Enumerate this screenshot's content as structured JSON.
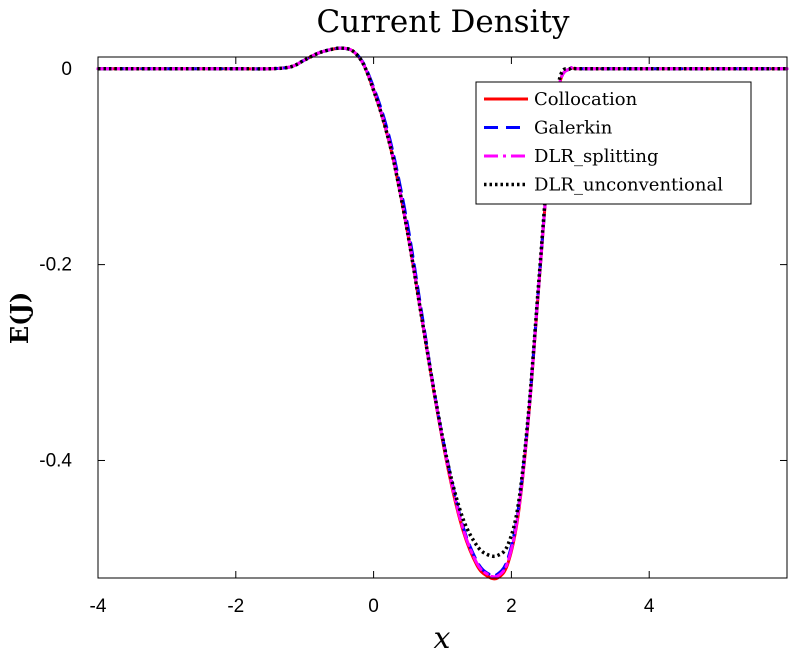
{
  "chart_data": {
    "type": "line",
    "title": "Current Density",
    "xlabel": "x",
    "ylabel": "E(J)",
    "xlim": [
      -4,
      6
    ],
    "ylim": [
      -0.52,
      0.012
    ],
    "xticks": [
      -4,
      -2,
      0,
      2,
      4
    ],
    "xtick_labels": [
      "-4",
      "-2",
      "0",
      "2",
      "4"
    ],
    "yticks": [
      0,
      -0.2,
      -0.4
    ],
    "ytick_labels": [
      "0",
      "-0.2",
      "-0.4"
    ],
    "grid": false,
    "legend_position": "top-right",
    "x": [
      -4,
      -3,
      -2,
      -1.5,
      -1.2,
      -1.0,
      -0.8,
      -0.6,
      -0.45,
      -0.3,
      -0.15,
      0.0,
      0.15,
      0.3,
      0.5,
      0.7,
      0.9,
      1.1,
      1.3,
      1.5,
      1.65,
      1.8,
      1.95,
      2.1,
      2.25,
      2.4,
      2.55,
      2.7,
      2.85,
      3.0,
      4.0,
      5.0,
      6.0
    ],
    "series": [
      {
        "name": "Collocation",
        "color": "#ff0000",
        "style": "solid",
        "values": [
          0,
          0,
          0,
          0,
          0.002,
          0.009,
          0.016,
          0.02,
          0.021,
          0.018,
          0.005,
          -0.022,
          -0.055,
          -0.097,
          -0.17,
          -0.255,
          -0.34,
          -0.415,
          -0.472,
          -0.507,
          -0.518,
          -0.52,
          -0.505,
          -0.455,
          -0.355,
          -0.22,
          -0.09,
          -0.015,
          0,
          0,
          0,
          0,
          0
        ]
      },
      {
        "name": "Galerkin",
        "color": "#0000ff",
        "style": "dashed",
        "values": [
          0,
          0,
          0,
          0,
          0.002,
          0.009,
          0.016,
          0.02,
          0.021,
          0.018,
          0.006,
          -0.019,
          -0.05,
          -0.091,
          -0.162,
          -0.25,
          -0.338,
          -0.41,
          -0.468,
          -0.503,
          -0.515,
          -0.516,
          -0.5,
          -0.45,
          -0.352,
          -0.218,
          -0.09,
          -0.015,
          0,
          0,
          0,
          0,
          0
        ]
      },
      {
        "name": "DLR_splitting",
        "color": "#ff00ff",
        "style": "dashdot",
        "values": [
          0,
          0,
          0,
          0,
          0.002,
          0.009,
          0.016,
          0.02,
          0.021,
          0.018,
          0.005,
          -0.021,
          -0.054,
          -0.096,
          -0.169,
          -0.254,
          -0.339,
          -0.413,
          -0.47,
          -0.505,
          -0.516,
          -0.518,
          -0.503,
          -0.453,
          -0.354,
          -0.219,
          -0.09,
          -0.015,
          0,
          0,
          0,
          0,
          0
        ]
      },
      {
        "name": "DLR_unconventional",
        "color": "#000000",
        "style": "dotted",
        "values": [
          0,
          0,
          0,
          0,
          0.002,
          0.009,
          0.016,
          0.02,
          0.021,
          0.018,
          0.005,
          -0.022,
          -0.055,
          -0.097,
          -0.17,
          -0.255,
          -0.338,
          -0.41,
          -0.46,
          -0.487,
          -0.496,
          -0.497,
          -0.486,
          -0.445,
          -0.35,
          -0.215,
          -0.085,
          -0.01,
          0,
          0,
          0,
          0,
          0
        ]
      }
    ]
  }
}
